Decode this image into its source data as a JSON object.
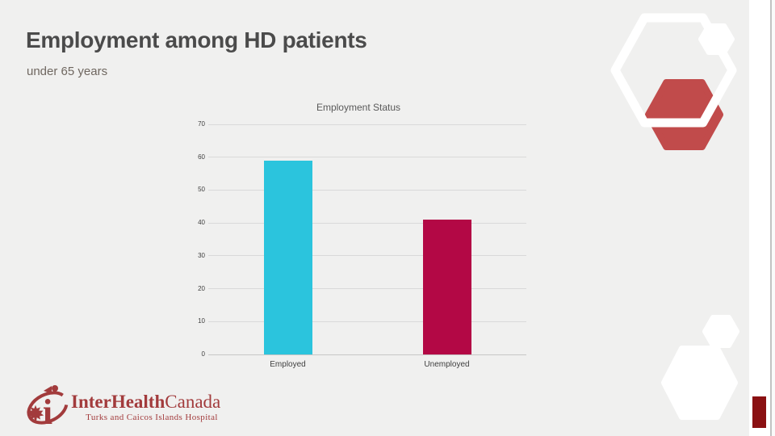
{
  "slide": {
    "title": "Employment among HD patients",
    "subtitle": "under 65 years"
  },
  "chart_data": {
    "type": "bar",
    "title": "Employment Status",
    "categories": [
      "Employed",
      "Unemployed"
    ],
    "values": [
      59,
      41
    ],
    "bar_colors": [
      "#2bc4dd",
      "#b30845"
    ],
    "xlabel": "",
    "ylabel": "",
    "ylim": [
      0,
      70
    ],
    "yticks": [
      0,
      10,
      20,
      30,
      40,
      50,
      60,
      70
    ],
    "grid": true,
    "gridline_color": "#d9d9d9",
    "legend": "none"
  },
  "logo": {
    "brand_bold": "InterHealth",
    "brand_regular": "Canada",
    "tagline": "Turks and Caicos Islands Hospital",
    "color": "#a23b3c"
  },
  "decor": {
    "hex_red": "#c14b4b",
    "corner_red": "#8a1012",
    "white": "#ffffff",
    "background": "#f0f0ef"
  }
}
